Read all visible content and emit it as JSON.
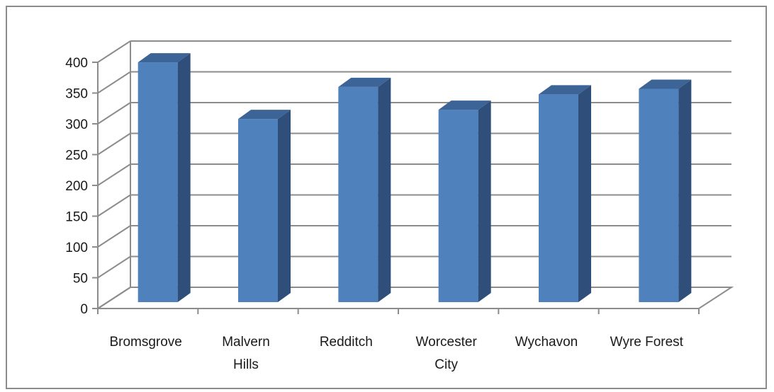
{
  "chart_data": {
    "type": "bar",
    "categories": [
      [
        "Bromsgrove"
      ],
      [
        "Malvern",
        "Hills"
      ],
      [
        "Redditch"
      ],
      [
        "Worcester",
        "City"
      ],
      [
        "Wychavon"
      ],
      [
        "Wyre Forest"
      ]
    ],
    "values": [
      393,
      301,
      353,
      316,
      341,
      350
    ],
    "title": "",
    "xlabel": "",
    "ylabel": "",
    "ylim": [
      0,
      400
    ],
    "yticks": [
      "0",
      "50",
      "100",
      "150",
      "200",
      "250",
      "300",
      "350",
      "400"
    ],
    "grid": true,
    "legend": "none",
    "style": "3d-column",
    "colors": {
      "bar_front": "#4f81bd",
      "bar_side": "#2f4f7a",
      "bar_top": "#3c6496",
      "gridline": "#8c8c8c",
      "axis": "#8c8c8c"
    }
  }
}
